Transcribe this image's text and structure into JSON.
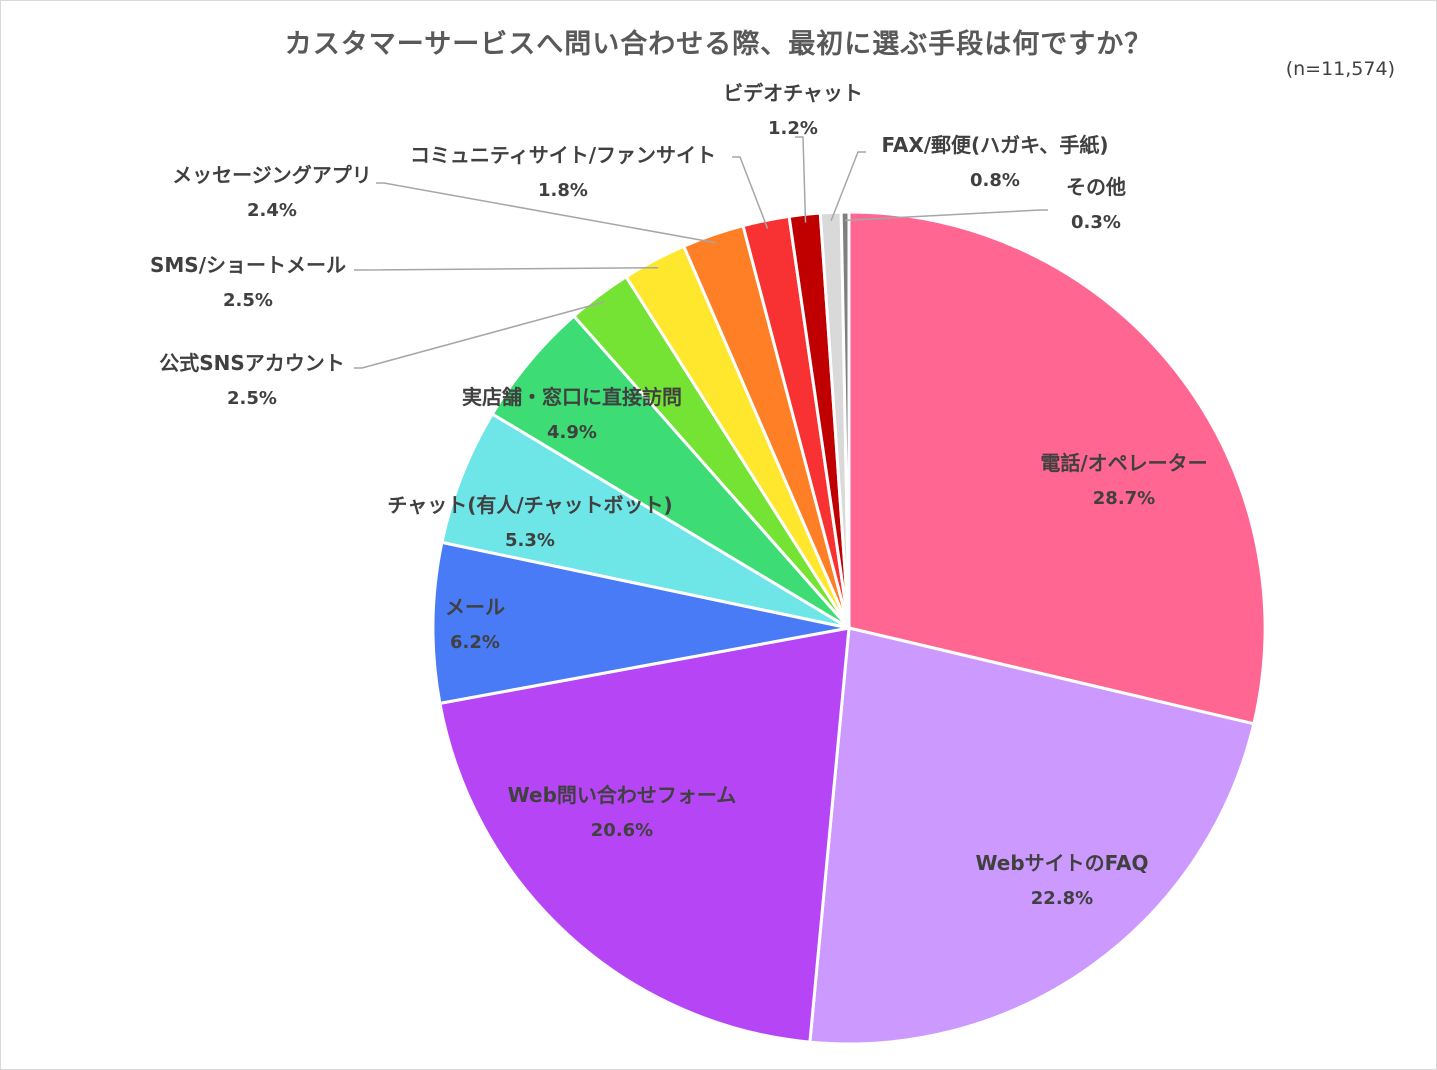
{
  "chart_data": {
    "type": "pie",
    "title": "カスタマーサービスへ問い合わせる際、最初に選ぶ手段は何ですか？",
    "subtitle": "(n=11,574)",
    "slices": [
      {
        "label": "電話/オペレーター",
        "value": 28.7,
        "value_label": "28.7%",
        "color": "#ff6692"
      },
      {
        "label": "WebサイトのFAQ",
        "value": 22.8,
        "value_label": "22.8%",
        "color": "#cc99ff"
      },
      {
        "label": "Web問い合わせフォーム",
        "value": 20.6,
        "value_label": "20.6%",
        "color": "#b646f5"
      },
      {
        "label": "メール",
        "value": 6.2,
        "value_label": "6.2%",
        "color": "#4a7bf7"
      },
      {
        "label": "チャット(有人/チャットボット)",
        "value": 5.3,
        "value_label": "5.3%",
        "color": "#6ee6e8"
      },
      {
        "label": "実店舗・窓口に直接訪問",
        "value": 4.9,
        "value_label": "4.9%",
        "color": "#3ddc74"
      },
      {
        "label": "公式SNSアカウント",
        "value": 2.5,
        "value_label": "2.5%",
        "color": "#75e334"
      },
      {
        "label": "SMS/ショートメール",
        "value": 2.5,
        "value_label": "2.5%",
        "color": "#ffe72e"
      },
      {
        "label": "メッセージングアプリ",
        "value": 2.4,
        "value_label": "2.4%",
        "color": "#ff7f27"
      },
      {
        "label": "コミュニティサイト/ファンサイト",
        "value": 1.8,
        "value_label": "1.8%",
        "color": "#f83232"
      },
      {
        "label": "ビデオチャット",
        "value": 1.2,
        "value_label": "1.2%",
        "color": "#c00000"
      },
      {
        "label": "FAX/郵便(ハガキ、手紙)",
        "value": 0.8,
        "value_label": "0.8%",
        "color": "#d9d9d9"
      },
      {
        "label": "その他",
        "value": 0.3,
        "value_label": "0.3%",
        "color": "#7f7f7f"
      }
    ]
  }
}
